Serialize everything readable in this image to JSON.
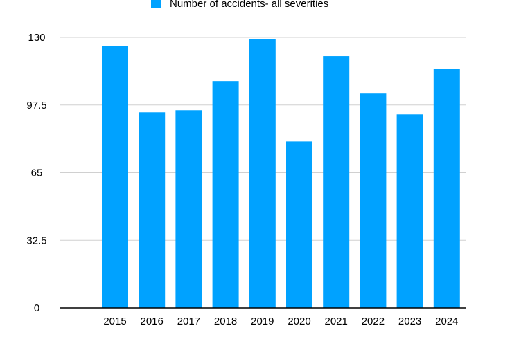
{
  "chart_data": {
    "type": "bar",
    "title": "",
    "xlabel": "",
    "ylabel": "",
    "categories": [
      "2015",
      "2016",
      "2017",
      "2018",
      "2019",
      "2020",
      "2021",
      "2022",
      "2023",
      "2024"
    ],
    "series": [
      {
        "name": "Number of accidents- all severities",
        "color": "#00A2FF",
        "values": [
          126,
          94,
          95,
          109,
          129,
          80,
          121,
          103,
          93,
          115
        ]
      }
    ],
    "ylim": [
      0,
      130
    ],
    "yticks": [
      "0",
      "32.5",
      "65",
      "97.5",
      "130"
    ],
    "grid": true,
    "legend_position": "top-center"
  }
}
